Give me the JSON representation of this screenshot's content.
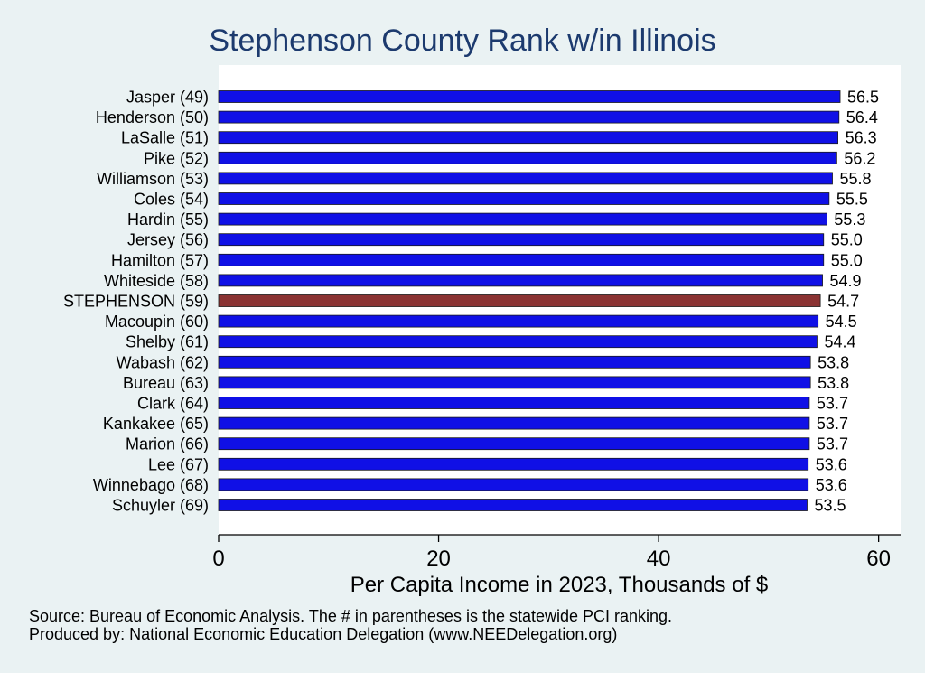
{
  "chart_data": {
    "type": "bar",
    "orientation": "horizontal",
    "title": "Stephenson County Rank w/in Illinois",
    "xlabel": "Per Capita Income in 2023, Thousands of $",
    "ylabel": "",
    "xlim": [
      0,
      62
    ],
    "xticks": [
      0,
      20,
      40,
      60
    ],
    "grid": false,
    "categories": [
      "Jasper (49)",
      "Henderson (50)",
      "LaSalle (51)",
      "Pike (52)",
      "Williamson (53)",
      "Coles (54)",
      "Hardin (55)",
      "Jersey (56)",
      "Hamilton (57)",
      "Whiteside (58)",
      "STEPHENSON (59)",
      "Macoupin (60)",
      "Shelby (61)",
      "Wabash (62)",
      "Bureau (63)",
      "Clark (64)",
      "Kankakee (65)",
      "Marion (66)",
      "Lee (67)",
      "Winnebago (68)",
      "Schuyler (69)"
    ],
    "values": [
      56.5,
      56.4,
      56.3,
      56.2,
      55.8,
      55.5,
      55.3,
      55.0,
      55.0,
      54.9,
      54.7,
      54.5,
      54.4,
      53.8,
      53.8,
      53.7,
      53.7,
      53.7,
      53.6,
      53.6,
      53.5
    ],
    "value_labels": [
      "56.5",
      "56.4",
      "56.3",
      "56.2",
      "55.8",
      "55.5",
      "55.3",
      "55.0",
      "55.0",
      "54.9",
      "54.7",
      "54.5",
      "54.4",
      "53.8",
      "53.8",
      "53.7",
      "53.7",
      "53.7",
      "53.6",
      "53.6",
      "53.5"
    ],
    "highlight_category": "STEPHENSON (59)",
    "colors": {
      "bar": "#1010e6",
      "highlight_bar": "#8b3333",
      "plot_background": "#ffffff",
      "page_background": "#eaf2f3",
      "title": "#1c3a6e"
    }
  },
  "notes": {
    "source": "Source: Bureau of Economic Analysis. The # in parentheses is the statewide PCI ranking.",
    "produced_by": "Produced by: National Economic Education Delegation (www.NEEDelegation.org)"
  }
}
